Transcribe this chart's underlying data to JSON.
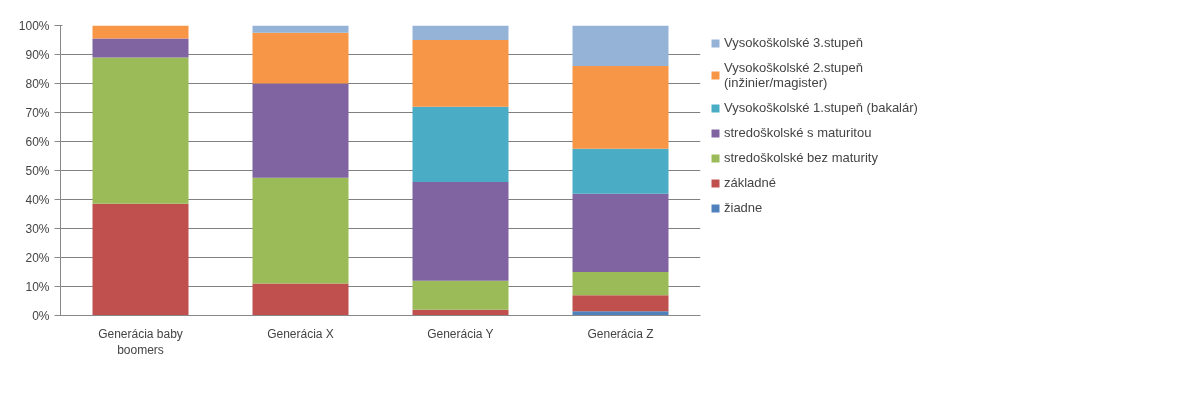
{
  "chart_data": {
    "type": "bar",
    "stacked": true,
    "categories": [
      "Generácia baby boomers",
      "Generácia X",
      "Generácia Y",
      "Generácia Z"
    ],
    "series": [
      {
        "name": "žiadne",
        "color": "#4f81bd",
        "values": [
          0,
          0,
          0,
          1.5
        ]
      },
      {
        "name": "základné",
        "color": "#c0504d",
        "values": [
          38.5,
          11,
          2,
          5.5
        ]
      },
      {
        "name": "stredoškolské bez maturity",
        "color": "#9bbb59",
        "values": [
          50.5,
          36.5,
          10,
          8
        ]
      },
      {
        "name": "stredoškolské s maturitou",
        "color": "#8064a2",
        "values": [
          6.5,
          32.5,
          34,
          27
        ]
      },
      {
        "name": "Vysokoškolské 1.stupeň (bakalár)",
        "color": "#4bacc6",
        "values": [
          0,
          0,
          26,
          15.5
        ]
      },
      {
        "name": "Vysokoškolské 2.stupeň (inžinier/magister)",
        "color": "#f79646",
        "values": [
          4.5,
          17.5,
          23,
          28.5
        ]
      },
      {
        "name": "Vysokoškolské 3.stupeň",
        "color": "#95b3d7",
        "values": [
          0,
          2.5,
          5,
          14
        ]
      }
    ],
    "ylim": [
      0,
      100
    ],
    "yticks": [
      {
        "value": 0,
        "label": "0%"
      },
      {
        "value": 10,
        "label": "10%"
      },
      {
        "value": 20,
        "label": "20%"
      },
      {
        "value": 30,
        "label": "30%"
      },
      {
        "value": 40,
        "label": "40%"
      },
      {
        "value": 50,
        "label": "50%"
      },
      {
        "value": 60,
        "label": "60%"
      },
      {
        "value": 70,
        "label": "70%"
      },
      {
        "value": 80,
        "label": "80%"
      },
      {
        "value": 90,
        "label": "90%"
      },
      {
        "value": 100,
        "label": "100%"
      }
    ],
    "grid": "y",
    "legend": "right"
  }
}
